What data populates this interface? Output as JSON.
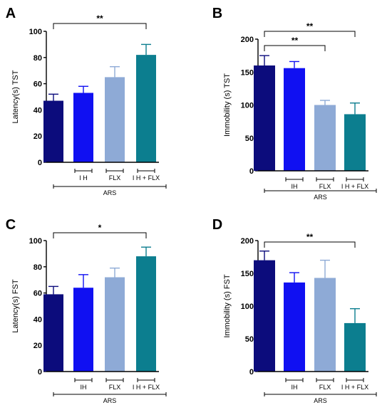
{
  "colors": {
    "ARS": "#0c0c7c",
    "IH": "#1010f2",
    "FLX": "#8eaad6",
    "IH_FLX": "#0c7e8f"
  },
  "chart_data": [
    {
      "panel": "A",
      "type": "bar",
      "ylabel": "Latency(s) TST",
      "ylim": [
        0,
        100
      ],
      "yticks": [
        0,
        20,
        40,
        60,
        80,
        100
      ],
      "categories": [
        "",
        "I H",
        "FLX",
        "I H + FLX"
      ],
      "values": [
        47,
        53,
        65,
        82
      ],
      "errors": [
        5,
        5,
        8,
        8
      ],
      "group_label": "ARS",
      "significance": [
        {
          "from": 0,
          "to": 3,
          "label": "**"
        }
      ]
    },
    {
      "panel": "B",
      "type": "bar",
      "ylabel": "Immobility (s) TST",
      "ylim": [
        0,
        200
      ],
      "yticks": [
        0,
        50,
        100,
        150,
        200
      ],
      "categories": [
        "",
        "IH",
        "FLX",
        "I H + FLX"
      ],
      "values": [
        160,
        156,
        100,
        86
      ],
      "errors": [
        15,
        10,
        7,
        17
      ],
      "group_label": "ARS",
      "significance": [
        {
          "from": 0,
          "to": 3,
          "label": "**"
        },
        {
          "from": 0,
          "to": 2,
          "label": "**"
        }
      ]
    },
    {
      "panel": "C",
      "type": "bar",
      "ylabel": "Latency(s) FST",
      "ylim": [
        0,
        100
      ],
      "yticks": [
        0,
        20,
        40,
        60,
        80,
        100
      ],
      "categories": [
        "",
        "IH",
        "FLX",
        "I H + FLX"
      ],
      "values": [
        59,
        64,
        72,
        88
      ],
      "errors": [
        6,
        10,
        7,
        7
      ],
      "group_label": "ARS",
      "significance": [
        {
          "from": 0,
          "to": 3,
          "label": "*"
        }
      ]
    },
    {
      "panel": "D",
      "type": "bar",
      "ylabel": "Immobility (s) FST",
      "ylim": [
        0,
        200
      ],
      "yticks": [
        0,
        50,
        100,
        150,
        200
      ],
      "categories": [
        "",
        "IH",
        "FLX",
        "I H + FLX"
      ],
      "values": [
        170,
        136,
        143,
        74
      ],
      "errors": [
        14,
        15,
        27,
        22
      ],
      "group_label": "ARS",
      "significance": [
        {
          "from": 0,
          "to": 3,
          "label": "**"
        }
      ]
    }
  ]
}
